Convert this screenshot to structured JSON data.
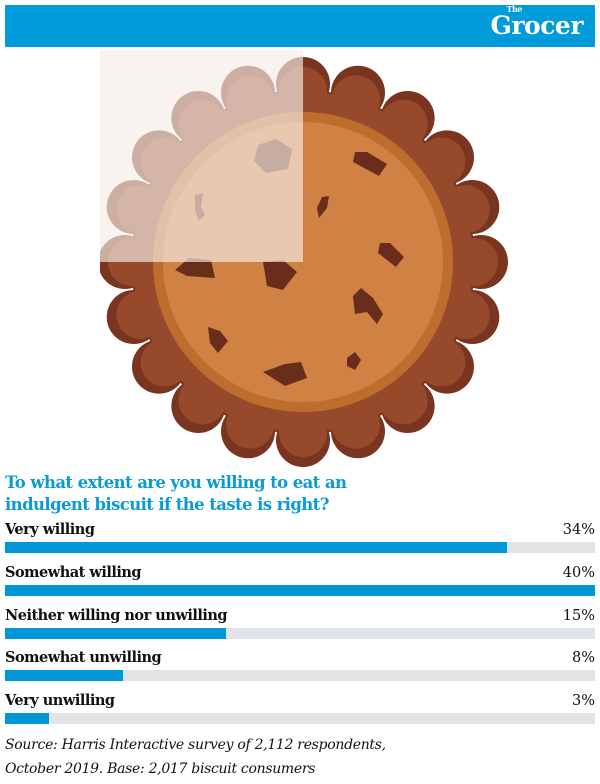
{
  "header": {
    "brand_small": "The",
    "brand": "Grocer",
    "color": "#009bd9"
  },
  "illustration": {
    "icon": "chocolate-chip-cookie-icon",
    "highlight": "quarter-faded"
  },
  "chart_data": {
    "type": "bar",
    "orientation": "horizontal",
    "title": "To what extent are you willing to eat an indulgent biscuit if the taste is right?",
    "categories": [
      "Very willing",
      "Somewhat willing",
      "Neither willing nor unwilling",
      "Somewhat unwilling",
      "Very unwilling"
    ],
    "values": [
      34,
      40,
      15,
      8,
      3
    ],
    "value_labels": [
      "34%",
      "40%",
      "15%",
      "8%",
      "3%"
    ],
    "unit": "%",
    "xlim": [
      0,
      40
    ],
    "bar_color": "#0097d6",
    "track_color": "#e3e3e5",
    "grid": false,
    "legend": null,
    "source": "Source: Harris Interactive survey of 2,112 respondents, October 2019. Base: 2,017 biscuit consumers"
  },
  "question": {
    "line1": "To what extent are you willing to eat an",
    "line2": "indulgent biscuit if the taste is right?"
  },
  "rows": [
    {
      "label": "Very willing",
      "value": "34%",
      "pct": 34
    },
    {
      "label": "Somewhat willing",
      "value": "40%",
      "pct": 40
    },
    {
      "label": "Neither willing nor unwilling",
      "value": "15%",
      "pct": 15
    },
    {
      "label": "Somewhat unwilling",
      "value": "8%",
      "pct": 8
    },
    {
      "label": "Very unwilling",
      "value": "3%",
      "pct": 3
    }
  ],
  "source": {
    "line1": "Source: Harris Interactive survey of 2,112 respondents,",
    "line2": "October 2019. Base: 2,017 biscuit consumers"
  }
}
